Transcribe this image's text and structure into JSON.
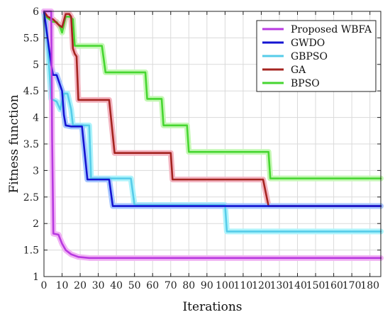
{
  "chart_data": {
    "type": "line",
    "title": "",
    "xlabel": "Iterations",
    "ylabel": "Fitness function",
    "xlim": [
      0,
      186
    ],
    "ylim": [
      1,
      6
    ],
    "xticks": [
      0,
      10,
      20,
      30,
      40,
      50,
      60,
      70,
      80,
      90,
      100,
      110,
      120,
      130,
      140,
      150,
      160,
      170,
      180
    ],
    "yticks": [
      1,
      1.5,
      2,
      2.5,
      3,
      3.5,
      4,
      4.5,
      5,
      5.5,
      6
    ],
    "grid": true,
    "legend_position": "top-right",
    "series": [
      {
        "name": "Proposed WBFA",
        "color": "#b839e0",
        "glow": "#f1b3f4",
        "points": [
          [
            0,
            6
          ],
          [
            4,
            6
          ],
          [
            4.5,
            3.6
          ],
          [
            5.2,
            1.81
          ],
          [
            8,
            1.79
          ],
          [
            10,
            1.62
          ],
          [
            12,
            1.5
          ],
          [
            15,
            1.42
          ],
          [
            19,
            1.37
          ],
          [
            25,
            1.35
          ],
          [
            60,
            1.35
          ],
          [
            120,
            1.35
          ],
          [
            186,
            1.35
          ]
        ]
      },
      {
        "name": "GWDO",
        "color": "#1414d2",
        "glow": "#a7c6ff",
        "points": [
          [
            0,
            6
          ],
          [
            4,
            5
          ],
          [
            5,
            4.8
          ],
          [
            7,
            4.8
          ],
          [
            8,
            4.7
          ],
          [
            10,
            4.5
          ],
          [
            11,
            4.05
          ],
          [
            12,
            3.85
          ],
          [
            15,
            3.83
          ],
          [
            21,
            3.83
          ],
          [
            24,
            2.83
          ],
          [
            30,
            2.83
          ],
          [
            36,
            2.83
          ],
          [
            38,
            2.33
          ],
          [
            60,
            2.33
          ],
          [
            123,
            2.33
          ],
          [
            186,
            2.33
          ]
        ]
      },
      {
        "name": "GBPSO",
        "color": "#56cce9",
        "glow": "#aef3fb",
        "points": [
          [
            0,
            6
          ],
          [
            2,
            5.4
          ],
          [
            4,
            4.35
          ],
          [
            7,
            4.3
          ],
          [
            9,
            4.15
          ],
          [
            11,
            4.45
          ],
          [
            13,
            4.45
          ],
          [
            15,
            4.15
          ],
          [
            16,
            3.85
          ],
          [
            25,
            3.85
          ],
          [
            26,
            2.85
          ],
          [
            48,
            2.85
          ],
          [
            50,
            2.35
          ],
          [
            100,
            2.35
          ],
          [
            101,
            1.85
          ],
          [
            186,
            1.85
          ]
        ]
      },
      {
        "name": "GA",
        "color": "#a52420",
        "glow": "#f3b5c1",
        "points": [
          [
            0,
            6
          ],
          [
            2,
            5.9
          ],
          [
            5,
            5.85
          ],
          [
            8,
            5.75
          ],
          [
            10,
            5.7
          ],
          [
            12,
            5.95
          ],
          [
            14,
            5.95
          ],
          [
            15,
            5.9
          ],
          [
            16,
            5.3
          ],
          [
            17,
            5.2
          ],
          [
            18,
            5.15
          ],
          [
            19,
            4.33
          ],
          [
            36,
            4.33
          ],
          [
            39,
            3.33
          ],
          [
            70,
            3.33
          ],
          [
            71,
            2.83
          ],
          [
            121,
            2.83
          ],
          [
            124,
            2.33
          ],
          [
            186,
            2.33
          ]
        ]
      },
      {
        "name": "BPSO",
        "color": "#46d630",
        "glow": "#c4f7b4",
        "points": [
          [
            0,
            6
          ],
          [
            1,
            5.9
          ],
          [
            3,
            5.85
          ],
          [
            5,
            5.8
          ],
          [
            7,
            5.8
          ],
          [
            9,
            5.7
          ],
          [
            10,
            5.6
          ],
          [
            12,
            5.9
          ],
          [
            14,
            5.9
          ],
          [
            16,
            5.85
          ],
          [
            17,
            5.35
          ],
          [
            32,
            5.35
          ],
          [
            34,
            4.85
          ],
          [
            56,
            4.85
          ],
          [
            57,
            4.35
          ],
          [
            65,
            4.35
          ],
          [
            66,
            3.85
          ],
          [
            79,
            3.85
          ],
          [
            80,
            3.35
          ],
          [
            124,
            3.35
          ],
          [
            125,
            2.85
          ],
          [
            186,
            2.85
          ]
        ]
      }
    ]
  }
}
